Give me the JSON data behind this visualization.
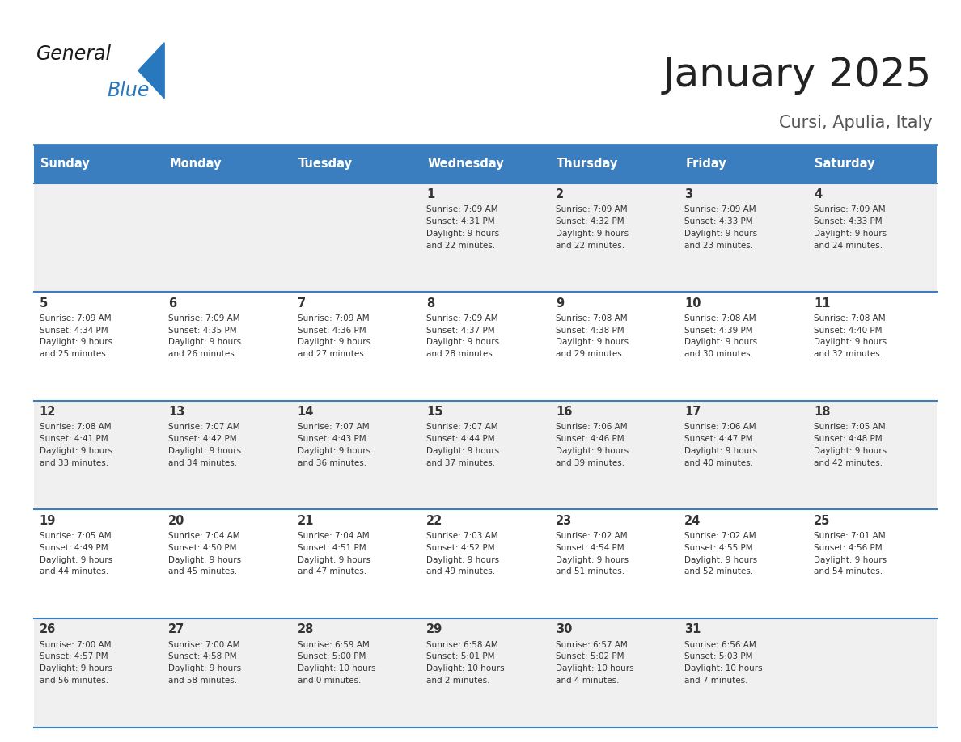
{
  "title": "January 2025",
  "subtitle": "Cursi, Apulia, Italy",
  "days_of_week": [
    "Sunday",
    "Monday",
    "Tuesday",
    "Wednesday",
    "Thursday",
    "Friday",
    "Saturday"
  ],
  "header_bg": "#3a7ebf",
  "header_text": "#ffffff",
  "row_bg_odd": "#f0f0f0",
  "row_bg_even": "#ffffff",
  "border_color": "#3a7ebf",
  "text_color": "#333333",
  "title_color": "#222222",
  "subtitle_color": "#555555",
  "generalblue_text_color": "#1a1a1a",
  "generalblue_blue_color": "#2878be",
  "logo_triangle_color": "#2878be",
  "fig_width": 11.88,
  "fig_height": 9.18,
  "weeks": [
    {
      "days": [
        {
          "day": "",
          "info": ""
        },
        {
          "day": "",
          "info": ""
        },
        {
          "day": "",
          "info": ""
        },
        {
          "day": "1",
          "info": "Sunrise: 7:09 AM\nSunset: 4:31 PM\nDaylight: 9 hours\nand 22 minutes."
        },
        {
          "day": "2",
          "info": "Sunrise: 7:09 AM\nSunset: 4:32 PM\nDaylight: 9 hours\nand 22 minutes."
        },
        {
          "day": "3",
          "info": "Sunrise: 7:09 AM\nSunset: 4:33 PM\nDaylight: 9 hours\nand 23 minutes."
        },
        {
          "day": "4",
          "info": "Sunrise: 7:09 AM\nSunset: 4:33 PM\nDaylight: 9 hours\nand 24 minutes."
        }
      ]
    },
    {
      "days": [
        {
          "day": "5",
          "info": "Sunrise: 7:09 AM\nSunset: 4:34 PM\nDaylight: 9 hours\nand 25 minutes."
        },
        {
          "day": "6",
          "info": "Sunrise: 7:09 AM\nSunset: 4:35 PM\nDaylight: 9 hours\nand 26 minutes."
        },
        {
          "day": "7",
          "info": "Sunrise: 7:09 AM\nSunset: 4:36 PM\nDaylight: 9 hours\nand 27 minutes."
        },
        {
          "day": "8",
          "info": "Sunrise: 7:09 AM\nSunset: 4:37 PM\nDaylight: 9 hours\nand 28 minutes."
        },
        {
          "day": "9",
          "info": "Sunrise: 7:08 AM\nSunset: 4:38 PM\nDaylight: 9 hours\nand 29 minutes."
        },
        {
          "day": "10",
          "info": "Sunrise: 7:08 AM\nSunset: 4:39 PM\nDaylight: 9 hours\nand 30 minutes."
        },
        {
          "day": "11",
          "info": "Sunrise: 7:08 AM\nSunset: 4:40 PM\nDaylight: 9 hours\nand 32 minutes."
        }
      ]
    },
    {
      "days": [
        {
          "day": "12",
          "info": "Sunrise: 7:08 AM\nSunset: 4:41 PM\nDaylight: 9 hours\nand 33 minutes."
        },
        {
          "day": "13",
          "info": "Sunrise: 7:07 AM\nSunset: 4:42 PM\nDaylight: 9 hours\nand 34 minutes."
        },
        {
          "day": "14",
          "info": "Sunrise: 7:07 AM\nSunset: 4:43 PM\nDaylight: 9 hours\nand 36 minutes."
        },
        {
          "day": "15",
          "info": "Sunrise: 7:07 AM\nSunset: 4:44 PM\nDaylight: 9 hours\nand 37 minutes."
        },
        {
          "day": "16",
          "info": "Sunrise: 7:06 AM\nSunset: 4:46 PM\nDaylight: 9 hours\nand 39 minutes."
        },
        {
          "day": "17",
          "info": "Sunrise: 7:06 AM\nSunset: 4:47 PM\nDaylight: 9 hours\nand 40 minutes."
        },
        {
          "day": "18",
          "info": "Sunrise: 7:05 AM\nSunset: 4:48 PM\nDaylight: 9 hours\nand 42 minutes."
        }
      ]
    },
    {
      "days": [
        {
          "day": "19",
          "info": "Sunrise: 7:05 AM\nSunset: 4:49 PM\nDaylight: 9 hours\nand 44 minutes."
        },
        {
          "day": "20",
          "info": "Sunrise: 7:04 AM\nSunset: 4:50 PM\nDaylight: 9 hours\nand 45 minutes."
        },
        {
          "day": "21",
          "info": "Sunrise: 7:04 AM\nSunset: 4:51 PM\nDaylight: 9 hours\nand 47 minutes."
        },
        {
          "day": "22",
          "info": "Sunrise: 7:03 AM\nSunset: 4:52 PM\nDaylight: 9 hours\nand 49 minutes."
        },
        {
          "day": "23",
          "info": "Sunrise: 7:02 AM\nSunset: 4:54 PM\nDaylight: 9 hours\nand 51 minutes."
        },
        {
          "day": "24",
          "info": "Sunrise: 7:02 AM\nSunset: 4:55 PM\nDaylight: 9 hours\nand 52 minutes."
        },
        {
          "day": "25",
          "info": "Sunrise: 7:01 AM\nSunset: 4:56 PM\nDaylight: 9 hours\nand 54 minutes."
        }
      ]
    },
    {
      "days": [
        {
          "day": "26",
          "info": "Sunrise: 7:00 AM\nSunset: 4:57 PM\nDaylight: 9 hours\nand 56 minutes."
        },
        {
          "day": "27",
          "info": "Sunrise: 7:00 AM\nSunset: 4:58 PM\nDaylight: 9 hours\nand 58 minutes."
        },
        {
          "day": "28",
          "info": "Sunrise: 6:59 AM\nSunset: 5:00 PM\nDaylight: 10 hours\nand 0 minutes."
        },
        {
          "day": "29",
          "info": "Sunrise: 6:58 AM\nSunset: 5:01 PM\nDaylight: 10 hours\nand 2 minutes."
        },
        {
          "day": "30",
          "info": "Sunrise: 6:57 AM\nSunset: 5:02 PM\nDaylight: 10 hours\nand 4 minutes."
        },
        {
          "day": "31",
          "info": "Sunrise: 6:56 AM\nSunset: 5:03 PM\nDaylight: 10 hours\nand 7 minutes."
        },
        {
          "day": "",
          "info": ""
        }
      ]
    }
  ]
}
